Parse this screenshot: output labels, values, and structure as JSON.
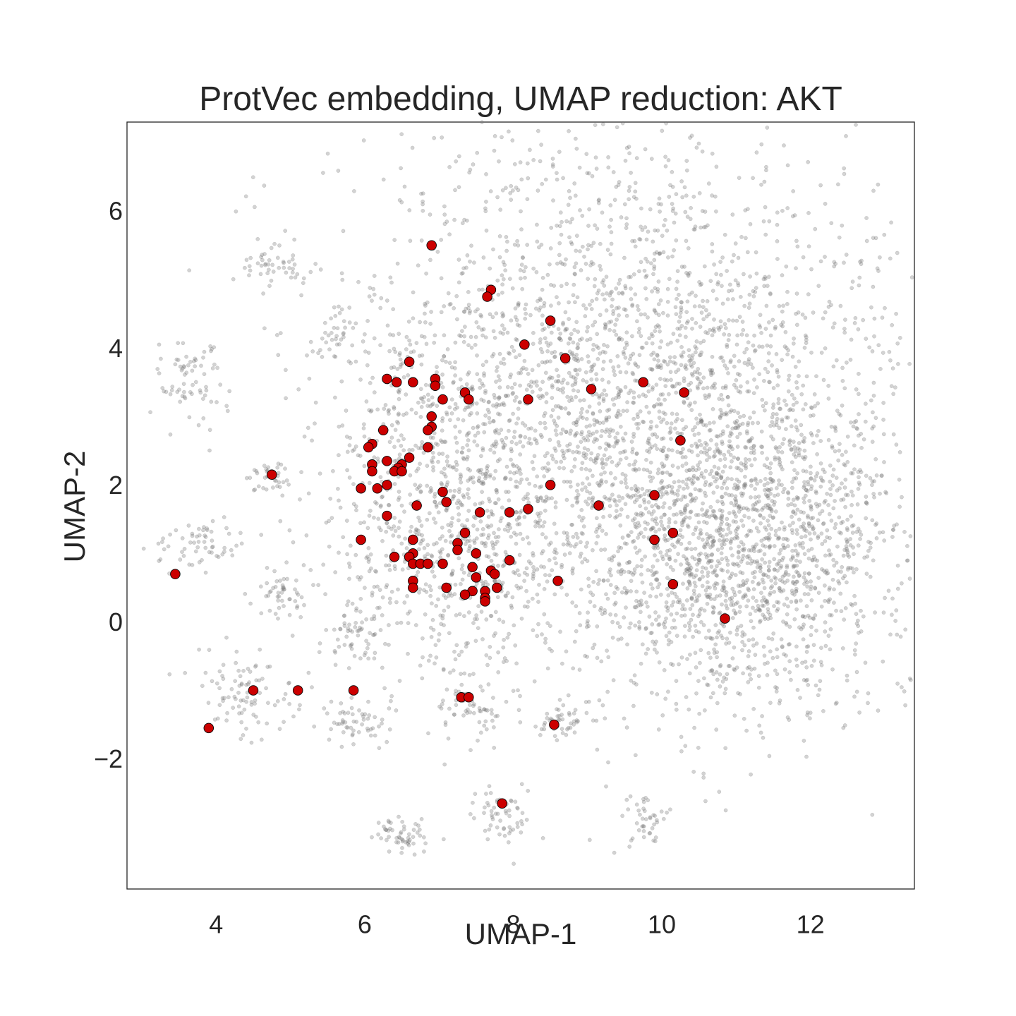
{
  "chart_data": {
    "type": "scatter",
    "title": "ProtVec embedding, UMAP reduction: AKT",
    "xlabel": "UMAP-1",
    "ylabel": "UMAP-2",
    "xlim": [
      2.8,
      13.4
    ],
    "ylim": [
      -3.9,
      7.3
    ],
    "xticks": [
      4,
      6,
      8,
      10,
      12
    ],
    "yticks": [
      -2,
      0,
      2,
      4,
      6
    ],
    "xtick_labels": [
      "4",
      "6",
      "8",
      "10",
      "12"
    ],
    "ytick_labels": [
      "−2",
      "0",
      "2",
      "4",
      "6"
    ],
    "grid": false,
    "legend": "none",
    "series": [
      {
        "role": "background",
        "color": "#808080",
        "opacity": 0.35,
        "clusters": [
          {
            "center": [
              9.6,
              3.0
            ],
            "spread": [
              1.9,
              2.0
            ],
            "points": 3200
          },
          {
            "center": [
              11.2,
              1.0
            ],
            "spread": [
              1.0,
              1.1
            ],
            "points": 1200
          },
          {
            "center": [
              7.0,
              1.6
            ],
            "spread": [
              0.7,
              1.3
            ],
            "points": 600
          },
          {
            "center": [
              4.8,
              5.2
            ],
            "spread": [
              0.25,
              0.15
            ],
            "points": 45
          },
          {
            "center": [
              3.7,
              3.5
            ],
            "spread": [
              0.2,
              0.3
            ],
            "points": 70
          },
          {
            "center": [
              5.6,
              4.2
            ],
            "spread": [
              0.2,
              0.2
            ],
            "points": 30
          },
          {
            "center": [
              4.7,
              2.1
            ],
            "spread": [
              0.15,
              0.15
            ],
            "points": 35
          },
          {
            "center": [
              3.8,
              1.1
            ],
            "spread": [
              0.3,
              0.2
            ],
            "points": 60
          },
          {
            "center": [
              4.9,
              0.4
            ],
            "spread": [
              0.15,
              0.2
            ],
            "points": 45
          },
          {
            "center": [
              5.9,
              -0.2
            ],
            "spread": [
              0.2,
              0.2
            ],
            "points": 45
          },
          {
            "center": [
              4.4,
              -1.1
            ],
            "spread": [
              0.35,
              0.3
            ],
            "points": 90
          },
          {
            "center": [
              5.9,
              -1.5
            ],
            "spread": [
              0.2,
              0.15
            ],
            "points": 50
          },
          {
            "center": [
              7.4,
              -1.2
            ],
            "spread": [
              0.2,
              0.15
            ],
            "points": 45
          },
          {
            "center": [
              8.7,
              -1.5
            ],
            "spread": [
              0.2,
              0.15
            ],
            "points": 45
          },
          {
            "center": [
              6.5,
              -3.1
            ],
            "spread": [
              0.2,
              0.15
            ],
            "points": 55
          },
          {
            "center": [
              7.9,
              -2.8
            ],
            "spread": [
              0.2,
              0.2
            ],
            "points": 55
          },
          {
            "center": [
              9.8,
              -2.9
            ],
            "spread": [
              0.15,
              0.2
            ],
            "points": 40
          }
        ]
      },
      {
        "role": "highlight",
        "color": "#cc0000",
        "points": [
          [
            6.9,
            5.5
          ],
          [
            7.7,
            4.85
          ],
          [
            7.65,
            4.75
          ],
          [
            8.5,
            4.4
          ],
          [
            8.15,
            4.05
          ],
          [
            8.7,
            3.85
          ],
          [
            6.6,
            3.8
          ],
          [
            6.3,
            3.55
          ],
          [
            6.43,
            3.5
          ],
          [
            6.65,
            3.5
          ],
          [
            6.95,
            3.55
          ],
          [
            6.95,
            3.45
          ],
          [
            7.35,
            3.35
          ],
          [
            7.4,
            3.25
          ],
          [
            7.05,
            3.25
          ],
          [
            8.2,
            3.25
          ],
          [
            9.05,
            3.4
          ],
          [
            9.75,
            3.5
          ],
          [
            10.3,
            3.35
          ],
          [
            6.9,
            3.0
          ],
          [
            6.9,
            2.85
          ],
          [
            6.85,
            2.8
          ],
          [
            6.25,
            2.8
          ],
          [
            6.1,
            2.6
          ],
          [
            6.05,
            2.55
          ],
          [
            6.85,
            2.55
          ],
          [
            10.25,
            2.65
          ],
          [
            6.6,
            2.4
          ],
          [
            6.3,
            2.35
          ],
          [
            6.1,
            2.3
          ],
          [
            6.5,
            2.3
          ],
          [
            6.45,
            2.25
          ],
          [
            6.4,
            2.2
          ],
          [
            6.5,
            2.2
          ],
          [
            6.1,
            2.2
          ],
          [
            4.75,
            2.15
          ],
          [
            6.3,
            2.0
          ],
          [
            6.17,
            1.95
          ],
          [
            5.95,
            1.95
          ],
          [
            8.5,
            2.0
          ],
          [
            7.05,
            1.9
          ],
          [
            9.9,
            1.85
          ],
          [
            7.1,
            1.75
          ],
          [
            6.7,
            1.7
          ],
          [
            9.15,
            1.7
          ],
          [
            8.2,
            1.65
          ],
          [
            7.55,
            1.6
          ],
          [
            7.95,
            1.6
          ],
          [
            6.3,
            1.55
          ],
          [
            7.35,
            1.3
          ],
          [
            10.15,
            1.3
          ],
          [
            5.95,
            1.2
          ],
          [
            6.65,
            1.2
          ],
          [
            9.9,
            1.2
          ],
          [
            7.25,
            1.15
          ],
          [
            7.25,
            1.05
          ],
          [
            6.65,
            1.0
          ],
          [
            6.4,
            0.95
          ],
          [
            6.6,
            0.95
          ],
          [
            7.5,
            1.0
          ],
          [
            6.65,
            0.85
          ],
          [
            6.75,
            0.85
          ],
          [
            6.85,
            0.85
          ],
          [
            7.05,
            0.85
          ],
          [
            7.45,
            0.8
          ],
          [
            7.95,
            0.9
          ],
          [
            7.7,
            0.75
          ],
          [
            7.75,
            0.7
          ],
          [
            7.5,
            0.65
          ],
          [
            6.65,
            0.6
          ],
          [
            8.6,
            0.6
          ],
          [
            10.15,
            0.55
          ],
          [
            6.65,
            0.5
          ],
          [
            7.1,
            0.5
          ],
          [
            7.45,
            0.45
          ],
          [
            7.78,
            0.5
          ],
          [
            7.62,
            0.45
          ],
          [
            7.35,
            0.4
          ],
          [
            7.62,
            0.35
          ],
          [
            7.62,
            0.3
          ],
          [
            10.85,
            0.05
          ],
          [
            5.85,
            -1.0
          ],
          [
            5.1,
            -1.0
          ],
          [
            4.5,
            -1.0
          ],
          [
            7.3,
            -1.1
          ],
          [
            7.4,
            -1.1
          ],
          [
            3.9,
            -1.55
          ],
          [
            8.55,
            -1.5
          ],
          [
            7.85,
            -2.65
          ],
          [
            3.45,
            0.7
          ]
        ]
      }
    ]
  }
}
